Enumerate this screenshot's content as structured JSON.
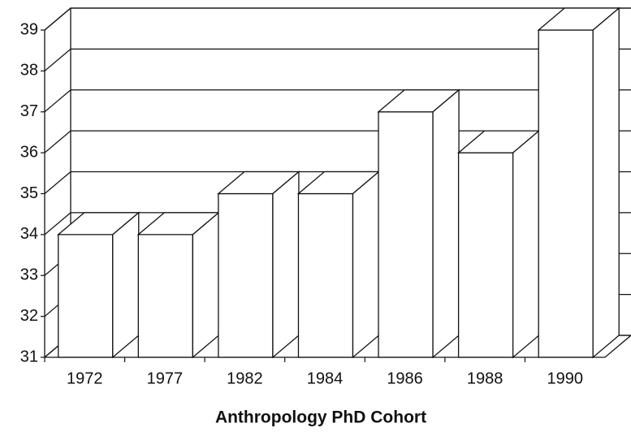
{
  "chart_data": {
    "type": "bar3d",
    "xlabel": "Anthropology PhD Cohort",
    "categories": [
      "1972",
      "1977",
      "1982",
      "1984",
      "1986",
      "1988",
      "1990"
    ],
    "values": [
      34,
      34,
      35,
      35,
      37,
      36,
      39
    ],
    "color": "#ffffff",
    "ylim": [
      31,
      39
    ],
    "yticks": [
      31,
      32,
      33,
      34,
      35,
      36,
      37,
      38,
      39
    ],
    "grid": true
  }
}
